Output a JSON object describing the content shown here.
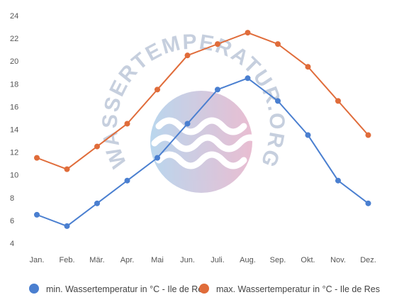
{
  "chart_data": {
    "type": "line",
    "categories": [
      "Jan.",
      "Feb.",
      "Mär.",
      "Apr.",
      "Mai",
      "Jun.",
      "Juli.",
      "Aug.",
      "Sep.",
      "Okt.",
      "Nov.",
      "Dez."
    ],
    "series": [
      {
        "name": "min. Wassertemperatur in °C - Ile de Res",
        "color": "#4a7fd0",
        "values": [
          6.5,
          5.5,
          7.5,
          9.5,
          11.5,
          14.5,
          17.5,
          18.5,
          16.5,
          13.5,
          9.5,
          7.5
        ]
      },
      {
        "name": "max. Wassertemperatur in °C - Ile de Res",
        "color": "#e06c3a",
        "values": [
          11.5,
          10.5,
          12.5,
          14.5,
          17.5,
          20.5,
          21.5,
          22.5,
          21.5,
          19.5,
          16.5,
          13.5
        ]
      }
    ],
    "ylim": [
      4,
      24
    ],
    "yticks": [
      4,
      6,
      8,
      10,
      12,
      14,
      16,
      18,
      20,
      22,
      24
    ],
    "grid": false,
    "legend_position": "bottom",
    "watermark": "WASSERTEMPERATUR.ORG"
  }
}
